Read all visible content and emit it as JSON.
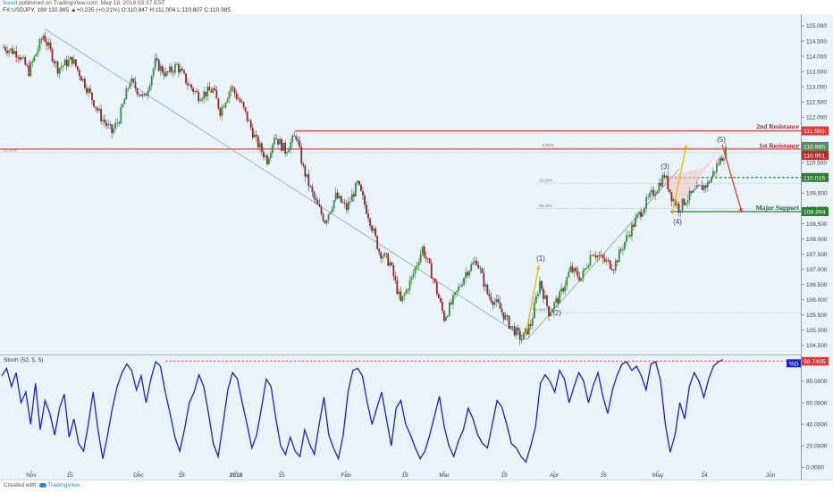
{
  "header": {
    "publisher": "fxsixit",
    "published_text": "published on TradingView.com, May 18, 2018 03:37 EST",
    "symbol_line": "FX:USDJPY, 180  110.985  ▲+0.235 (+0.21%)  O:110.847  H:111.004  L:110.807  C:110.985"
  },
  "footer": {
    "created_with": "Created with",
    "brand": "TradingView"
  },
  "colors": {
    "background": "#e8f3fc",
    "up_candle": "#3c8a3c",
    "down_candle": "#8a2a2a",
    "resistance": "#e53935",
    "support": "#2e7d32",
    "stoch_line": "#1a22c8",
    "arrow_up": "#f4b400",
    "arrow_down": "#e53935",
    "fib": "#9e9e9e"
  },
  "chart_data": {
    "type": "candlestick",
    "symbol": "USDJPY",
    "timeframe": "180",
    "x_ticks": [
      "Nov",
      "15",
      "Dec",
      "18",
      "2018",
      "15",
      "Feb",
      "19",
      "Mar",
      "19",
      "Apr",
      "16",
      "May",
      "14",
      "Jun"
    ],
    "y_ticks": [
      "104.500",
      "105.000",
      "105.500",
      "106.000",
      "106.500",
      "107.000",
      "107.500",
      "108.000",
      "108.500",
      "109.000",
      "109.500",
      "110.000",
      "110.500",
      "111.000",
      "111.500",
      "112.000",
      "112.500",
      "113.000",
      "113.500",
      "114.000",
      "114.500",
      "115.000"
    ],
    "ylim": [
      104.2,
      115.3
    ],
    "price_path": [
      [
        0,
        114.3
      ],
      [
        8,
        114.1
      ],
      [
        14,
        113.5
      ],
      [
        22,
        114.7
      ],
      [
        30,
        113.6
      ],
      [
        38,
        113.9
      ],
      [
        45,
        113.1
      ],
      [
        54,
        112.0
      ],
      [
        60,
        111.5
      ],
      [
        64,
        111.95
      ],
      [
        70,
        113.2
      ],
      [
        78,
        112.6
      ],
      [
        84,
        113.8
      ],
      [
        90,
        113.4
      ],
      [
        96,
        113.7
      ],
      [
        102,
        113.1
      ],
      [
        108,
        112.7
      ],
      [
        116,
        112.9
      ],
      [
        120,
        112.2
      ],
      [
        126,
        113.0
      ],
      [
        132,
        112.4
      ],
      [
        140,
        111.2
      ],
      [
        146,
        110.6
      ],
      [
        150,
        111.4
      ],
      [
        156,
        110.9
      ],
      [
        162,
        111.4
      ],
      [
        166,
        110.3
      ],
      [
        172,
        109.3
      ],
      [
        178,
        108.6
      ],
      [
        184,
        109.4
      ],
      [
        190,
        109.0
      ],
      [
        196,
        109.8
      ],
      [
        202,
        108.8
      ],
      [
        208,
        107.6
      ],
      [
        214,
        107.2
      ],
      [
        220,
        105.9
      ],
      [
        226,
        106.7
      ],
      [
        232,
        107.7
      ],
      [
        238,
        106.7
      ],
      [
        244,
        105.4
      ],
      [
        250,
        106.1
      ],
      [
        256,
        106.9
      ],
      [
        262,
        107.3
      ],
      [
        268,
        106.2
      ],
      [
        274,
        105.8
      ],
      [
        280,
        105.2
      ],
      [
        287,
        104.7
      ],
      [
        292,
        105.2
      ],
      [
        297,
        106.6
      ],
      [
        302,
        105.6
      ],
      [
        308,
        106.1
      ],
      [
        314,
        107.0
      ],
      [
        320,
        106.7
      ],
      [
        326,
        107.6
      ],
      [
        332,
        107.3
      ],
      [
        338,
        107.1
      ],
      [
        344,
        107.9
      ],
      [
        350,
        108.6
      ],
      [
        356,
        109.2
      ],
      [
        362,
        109.7
      ],
      [
        366,
        110.1
      ],
      [
        370,
        109.4
      ],
      [
        374,
        109.0
      ],
      [
        378,
        109.3
      ],
      [
        384,
        109.6
      ],
      [
        390,
        109.8
      ],
      [
        395,
        110.4
      ],
      [
        400,
        110.9
      ]
    ],
    "x_count": 400,
    "current_price": "110.985",
    "levels": [
      {
        "label": "2nd Resistance",
        "value": 111.55,
        "value_label": "111.550",
        "kind": "resistance"
      },
      {
        "label": "1st Resistance",
        "value": 110.951,
        "value_label": "110.951",
        "kind": "resistance"
      },
      {
        "label": "",
        "value": 110.016,
        "value_label": "110.016",
        "kind": "support_dashed"
      },
      {
        "label": "Major Support",
        "value": 108.894,
        "value_label": "108.894",
        "kind": "support"
      }
    ],
    "fib_labels": [
      "61.80%",
      "0.00%",
      "23.60%",
      "38.20%",
      "50.00%"
    ],
    "wave_labels": [
      "(1)",
      "(2)",
      "(3)",
      "(4)",
      "(5)"
    ],
    "stochastic": {
      "label": "Stoch (52, 5, 5)",
      "ylim": [
        0,
        100
      ],
      "y_ticks": [
        "0.0000",
        "20.0000",
        "40.0000",
        "60.0000",
        "80.0000"
      ],
      "current": "98.7405",
      "badge": "%D",
      "values": [
        85,
        92,
        75,
        88,
        60,
        70,
        40,
        78,
        35,
        62,
        50,
        30,
        55,
        68,
        28,
        45,
        22,
        15,
        40,
        70,
        35,
        8,
        30,
        55,
        75,
        88,
        96,
        90,
        72,
        85,
        60,
        82,
        98,
        94,
        70,
        50,
        28,
        15,
        35,
        60,
        70,
        86,
        75,
        50,
        22,
        10,
        40,
        72,
        88,
        82,
        60,
        40,
        18,
        30,
        55,
        82,
        75,
        45,
        20,
        12,
        28,
        15,
        10,
        35,
        22,
        12,
        40,
        65,
        30,
        18,
        8,
        30,
        70,
        90,
        92,
        85,
        60,
        40,
        55,
        70,
        45,
        20,
        55,
        62,
        40,
        30,
        18,
        8,
        15,
        30,
        48,
        66,
        38,
        20,
        10,
        25,
        35,
        55,
        45,
        30,
        22,
        18,
        40,
        62,
        56,
        40,
        22,
        18,
        10,
        5,
        20,
        38,
        78,
        86,
        80,
        70,
        90,
        82,
        60,
        75,
        88,
        80,
        60,
        76,
        88,
        66,
        50,
        72,
        86,
        96,
        98,
        90,
        94,
        85,
        72,
        96,
        98,
        80,
        40,
        14,
        30,
        60,
        45,
        75,
        88,
        80,
        65,
        82,
        94,
        98,
        100
      ]
    }
  }
}
